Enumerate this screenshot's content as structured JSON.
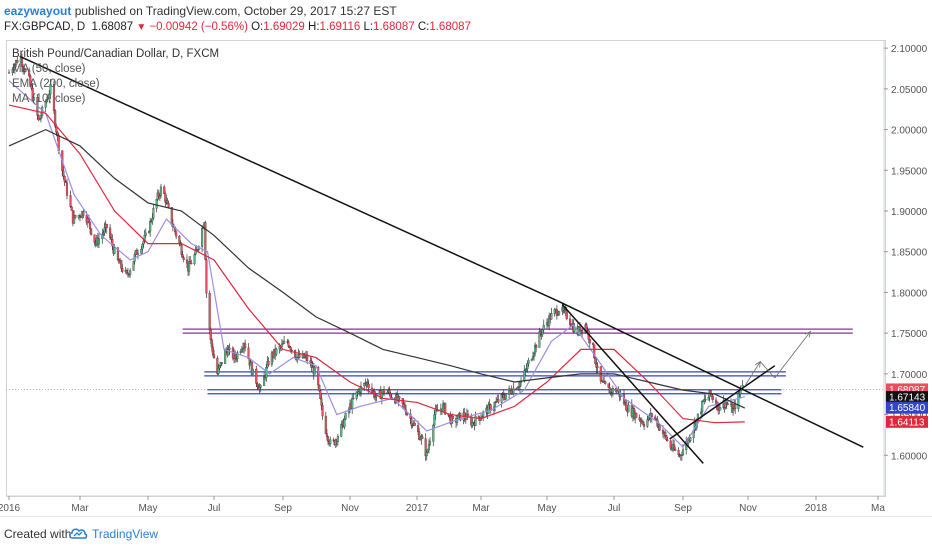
{
  "header": {
    "author": "eazywayout",
    "published_text": " published on TradingView.com, October 29, 2017 15:27 EST",
    "symbol": "FX:GBPCAD, D",
    "last": "1.68087",
    "change": "−0.00942 (−0.56%)",
    "open_label": "O:",
    "open": "1.69029",
    "high_label": "H:",
    "high": "1.69116",
    "low_label": "L:",
    "low": "1.68087",
    "close_label": "C:",
    "close": "1.68087"
  },
  "legend": {
    "title": "British Pound/Canadian Dollar, D, FXCM",
    "ma": "MA (50, close)",
    "ema": "EMA (200, close)",
    "ma2": "MA (10, close)"
  },
  "footer": {
    "created": "Created with",
    "brand": "TradingView"
  },
  "colors": {
    "up": "#53b987",
    "down": "#eb4d5c",
    "ma50": "#e0283d",
    "ema200": "#333333",
    "ma10": "#9a8fe6",
    "hline_blue": "#3344cc",
    "hline_purple": "#8a2f9e",
    "trend": "#111111"
  },
  "chart_data": {
    "type": "candlestick",
    "symbol": "GBPCAD",
    "timeframe": "D",
    "ylim": [
      1.55,
      2.11
    ],
    "y_ticks": [
      "2.10000",
      "2.05000",
      "2.00000",
      "1.95000",
      "1.90000",
      "1.85000",
      "1.80000",
      "1.75000",
      "1.70000",
      "1.65000",
      "1.60000"
    ],
    "x_ticks": [
      "2016",
      "Mar",
      "May",
      "Jul",
      "Sep",
      "Nov",
      "2017",
      "Mar",
      "May",
      "Jul",
      "Sep",
      "Nov",
      "2018",
      "Ma"
    ],
    "x_tick_dates": [
      "2016-01-01",
      "2016-03-01",
      "2016-05-01",
      "2016-07-01",
      "2016-09-01",
      "2016-11-01",
      "2017-01-01",
      "2017-03-01",
      "2017-05-01",
      "2017-07-01",
      "2017-09-01",
      "2017-11-01",
      "2018-01-01",
      "2018-03-01"
    ],
    "price_path": [
      [
        "2016-01-01",
        2.07
      ],
      [
        "2016-01-10",
        2.09
      ],
      [
        "2016-01-18",
        2.06
      ],
      [
        "2016-01-26",
        2.01
      ],
      [
        "2016-02-05",
        2.05
      ],
      [
        "2016-02-15",
        1.95
      ],
      [
        "2016-02-24",
        1.89
      ],
      [
        "2016-03-05",
        1.9
      ],
      [
        "2016-03-15",
        1.86
      ],
      [
        "2016-03-25",
        1.88
      ],
      [
        "2016-04-03",
        1.84
      ],
      [
        "2016-04-12",
        1.82
      ],
      [
        "2016-04-21",
        1.85
      ],
      [
        "2016-04-30",
        1.87
      ],
      [
        "2016-05-08",
        1.91
      ],
      [
        "2016-05-14",
        1.93
      ],
      [
        "2016-05-22",
        1.89
      ],
      [
        "2016-05-30",
        1.86
      ],
      [
        "2016-06-07",
        1.83
      ],
      [
        "2016-06-15",
        1.85
      ],
      [
        "2016-06-22",
        1.89
      ],
      [
        "2016-06-24",
        1.8
      ],
      [
        "2016-06-28",
        1.74
      ],
      [
        "2016-07-04",
        1.7
      ],
      [
        "2016-07-12",
        1.73
      ],
      [
        "2016-07-20",
        1.72
      ],
      [
        "2016-07-28",
        1.74
      ],
      [
        "2016-08-05",
        1.7
      ],
      [
        "2016-08-12",
        1.68
      ],
      [
        "2016-08-20",
        1.72
      ],
      [
        "2016-08-28",
        1.73
      ],
      [
        "2016-09-05",
        1.74
      ],
      [
        "2016-09-14",
        1.72
      ],
      [
        "2016-09-22",
        1.72
      ],
      [
        "2016-10-01",
        1.7
      ],
      [
        "2016-10-08",
        1.64
      ],
      [
        "2016-10-15",
        1.61
      ],
      [
        "2016-10-23",
        1.63
      ],
      [
        "2016-11-01",
        1.66
      ],
      [
        "2016-11-09",
        1.68
      ],
      [
        "2016-11-17",
        1.69
      ],
      [
        "2016-11-25",
        1.67
      ],
      [
        "2016-12-03",
        1.68
      ],
      [
        "2016-12-12",
        1.67
      ],
      [
        "2016-12-20",
        1.66
      ],
      [
        "2016-12-28",
        1.64
      ],
      [
        "2017-01-05",
        1.62
      ],
      [
        "2017-01-10",
        1.6
      ],
      [
        "2017-01-17",
        1.65
      ],
      [
        "2017-01-25",
        1.66
      ],
      [
        "2017-02-03",
        1.64
      ],
      [
        "2017-02-12",
        1.65
      ],
      [
        "2017-02-21",
        1.64
      ],
      [
        "2017-03-02",
        1.65
      ],
      [
        "2017-03-11",
        1.66
      ],
      [
        "2017-03-20",
        1.67
      ],
      [
        "2017-03-29",
        1.68
      ],
      [
        "2017-04-07",
        1.69
      ],
      [
        "2017-04-16",
        1.72
      ],
      [
        "2017-04-25",
        1.75
      ],
      [
        "2017-05-04",
        1.77
      ],
      [
        "2017-05-12",
        1.78
      ],
      [
        "2017-05-20",
        1.77
      ],
      [
        "2017-05-28",
        1.75
      ],
      [
        "2017-06-05",
        1.76
      ],
      [
        "2017-06-12",
        1.73
      ],
      [
        "2017-06-18",
        1.69
      ],
      [
        "2017-06-26",
        1.68
      ],
      [
        "2017-07-04",
        1.68
      ],
      [
        "2017-07-12",
        1.66
      ],
      [
        "2017-07-20",
        1.65
      ],
      [
        "2017-07-28",
        1.64
      ],
      [
        "2017-08-05",
        1.65
      ],
      [
        "2017-08-13",
        1.63
      ],
      [
        "2017-08-21",
        1.61
      ],
      [
        "2017-08-29",
        1.6
      ],
      [
        "2017-09-06",
        1.62
      ],
      [
        "2017-09-13",
        1.64
      ],
      [
        "2017-09-20",
        1.665
      ],
      [
        "2017-09-27",
        1.675
      ],
      [
        "2017-10-04",
        1.66
      ],
      [
        "2017-10-11",
        1.665
      ],
      [
        "2017-10-18",
        1.655
      ],
      [
        "2017-10-24",
        1.675
      ],
      [
        "2017-10-27",
        1.69
      ],
      [
        "2017-10-29",
        1.68087
      ]
    ],
    "indicators": [
      {
        "name": "MA (10, close)",
        "color": "#9a8fe6",
        "path": [
          [
            "2016-01-01",
            2.06
          ],
          [
            "2016-02-01",
            2.02
          ],
          [
            "2016-02-25",
            1.92
          ],
          [
            "2016-03-20",
            1.87
          ],
          [
            "2016-04-15",
            1.84
          ],
          [
            "2016-05-01",
            1.85
          ],
          [
            "2016-05-18",
            1.89
          ],
          [
            "2016-06-10",
            1.86
          ],
          [
            "2016-06-25",
            1.85
          ],
          [
            "2016-07-10",
            1.73
          ],
          [
            "2016-08-01",
            1.72
          ],
          [
            "2016-08-20",
            1.7
          ],
          [
            "2016-09-10",
            1.72
          ],
          [
            "2016-10-01",
            1.71
          ],
          [
            "2016-10-20",
            1.65
          ],
          [
            "2016-11-10",
            1.66
          ],
          [
            "2016-12-10",
            1.67
          ],
          [
            "2017-01-10",
            1.63
          ],
          [
            "2017-02-10",
            1.645
          ],
          [
            "2017-03-10",
            1.655
          ],
          [
            "2017-04-10",
            1.68
          ],
          [
            "2017-05-05",
            1.74
          ],
          [
            "2017-05-25",
            1.76
          ],
          [
            "2017-06-15",
            1.72
          ],
          [
            "2017-07-10",
            1.67
          ],
          [
            "2017-08-10",
            1.64
          ],
          [
            "2017-09-01",
            1.61
          ],
          [
            "2017-09-25",
            1.66
          ],
          [
            "2017-10-29",
            1.672
          ]
        ]
      },
      {
        "name": "MA (50, close)",
        "color": "#e0283d",
        "path": [
          [
            "2016-01-01",
            2.03
          ],
          [
            "2016-02-01",
            2.02
          ],
          [
            "2016-03-01",
            1.97
          ],
          [
            "2016-04-01",
            1.9
          ],
          [
            "2016-05-01",
            1.86
          ],
          [
            "2016-06-01",
            1.86
          ],
          [
            "2016-07-01",
            1.84
          ],
          [
            "2016-08-01",
            1.78
          ],
          [
            "2016-09-01",
            1.73
          ],
          [
            "2016-10-01",
            1.72
          ],
          [
            "2016-11-01",
            1.69
          ],
          [
            "2016-12-01",
            1.67
          ],
          [
            "2017-01-01",
            1.665
          ],
          [
            "2017-02-01",
            1.65
          ],
          [
            "2017-03-01",
            1.645
          ],
          [
            "2017-04-01",
            1.66
          ],
          [
            "2017-05-01",
            1.69
          ],
          [
            "2017-06-01",
            1.73
          ],
          [
            "2017-07-01",
            1.73
          ],
          [
            "2017-08-01",
            1.69
          ],
          [
            "2017-09-01",
            1.645
          ],
          [
            "2017-10-01",
            1.64
          ],
          [
            "2017-10-29",
            1.641
          ]
        ]
      },
      {
        "name": "EMA (200, close)",
        "color": "#333333",
        "path": [
          [
            "2016-01-01",
            1.98
          ],
          [
            "2016-02-01",
            2.0
          ],
          [
            "2016-03-01",
            1.98
          ],
          [
            "2016-04-01",
            1.94
          ],
          [
            "2016-05-01",
            1.91
          ],
          [
            "2016-06-01",
            1.9
          ],
          [
            "2016-07-01",
            1.87
          ],
          [
            "2016-08-01",
            1.83
          ],
          [
            "2016-09-01",
            1.8
          ],
          [
            "2016-10-01",
            1.77
          ],
          [
            "2016-11-01",
            1.75
          ],
          [
            "2016-12-01",
            1.73
          ],
          [
            "2017-01-01",
            1.72
          ],
          [
            "2017-02-01",
            1.71
          ],
          [
            "2017-03-01",
            1.7
          ],
          [
            "2017-04-01",
            1.69
          ],
          [
            "2017-05-01",
            1.695
          ],
          [
            "2017-06-01",
            1.7
          ],
          [
            "2017-07-01",
            1.7
          ],
          [
            "2017-08-01",
            1.69
          ],
          [
            "2017-09-01",
            1.68
          ],
          [
            "2017-10-01",
            1.675
          ],
          [
            "2017-10-29",
            1.658
          ]
        ]
      }
    ],
    "horizontal_levels": [
      {
        "price": 1.7525,
        "color": "#8a2f9e",
        "from": "2016-06-02",
        "to": "2018-02-05"
      },
      {
        "price": 1.7,
        "color": "#3344cc",
        "from": "2016-06-22",
        "to": "2017-12-05"
      },
      {
        "price": 1.678,
        "color": "#3344cc",
        "from": "2016-06-25",
        "to": "2017-12-01"
      }
    ],
    "trendlines": [
      {
        "from": [
          "2016-01-10",
          2.09
        ],
        "to": [
          "2017-05-10",
          1.79
        ]
      },
      {
        "from": [
          "2017-05-10",
          1.79
        ],
        "to": [
          "2018-02-15",
          1.61
        ]
      },
      {
        "from": [
          "2017-05-15",
          1.785
        ],
        "to": [
          "2017-09-20",
          1.59
        ]
      },
      {
        "from": [
          "2017-08-20",
          1.62
        ],
        "to": [
          "2017-11-25",
          1.71
        ]
      }
    ],
    "projection_arrows": [
      [
        [
          "2017-10-29",
          1.685
        ],
        [
          "2017-11-12",
          1.715
        ]
      ],
      [
        [
          "2017-11-12",
          1.715
        ],
        [
          "2017-11-25",
          1.695
        ]
      ],
      [
        [
          "2017-11-25",
          1.695
        ],
        [
          "2017-12-27",
          1.752
        ]
      ]
    ],
    "price_labels": [
      {
        "value": 1.68087,
        "text": "1.68087",
        "bg": "#eb4d5c",
        "fg": "#ffffff"
      },
      {
        "value": 1.67143,
        "text": "1.67143",
        "bg": "#111111",
        "fg": "#ffffff"
      },
      {
        "value": 1.6584,
        "text": "1.65840",
        "bg": "#3344cc",
        "fg": "#ffffff"
      },
      {
        "value": 1.64113,
        "text": "1.64113",
        "bg": "#e0283d",
        "fg": "#ffffff"
      }
    ]
  }
}
